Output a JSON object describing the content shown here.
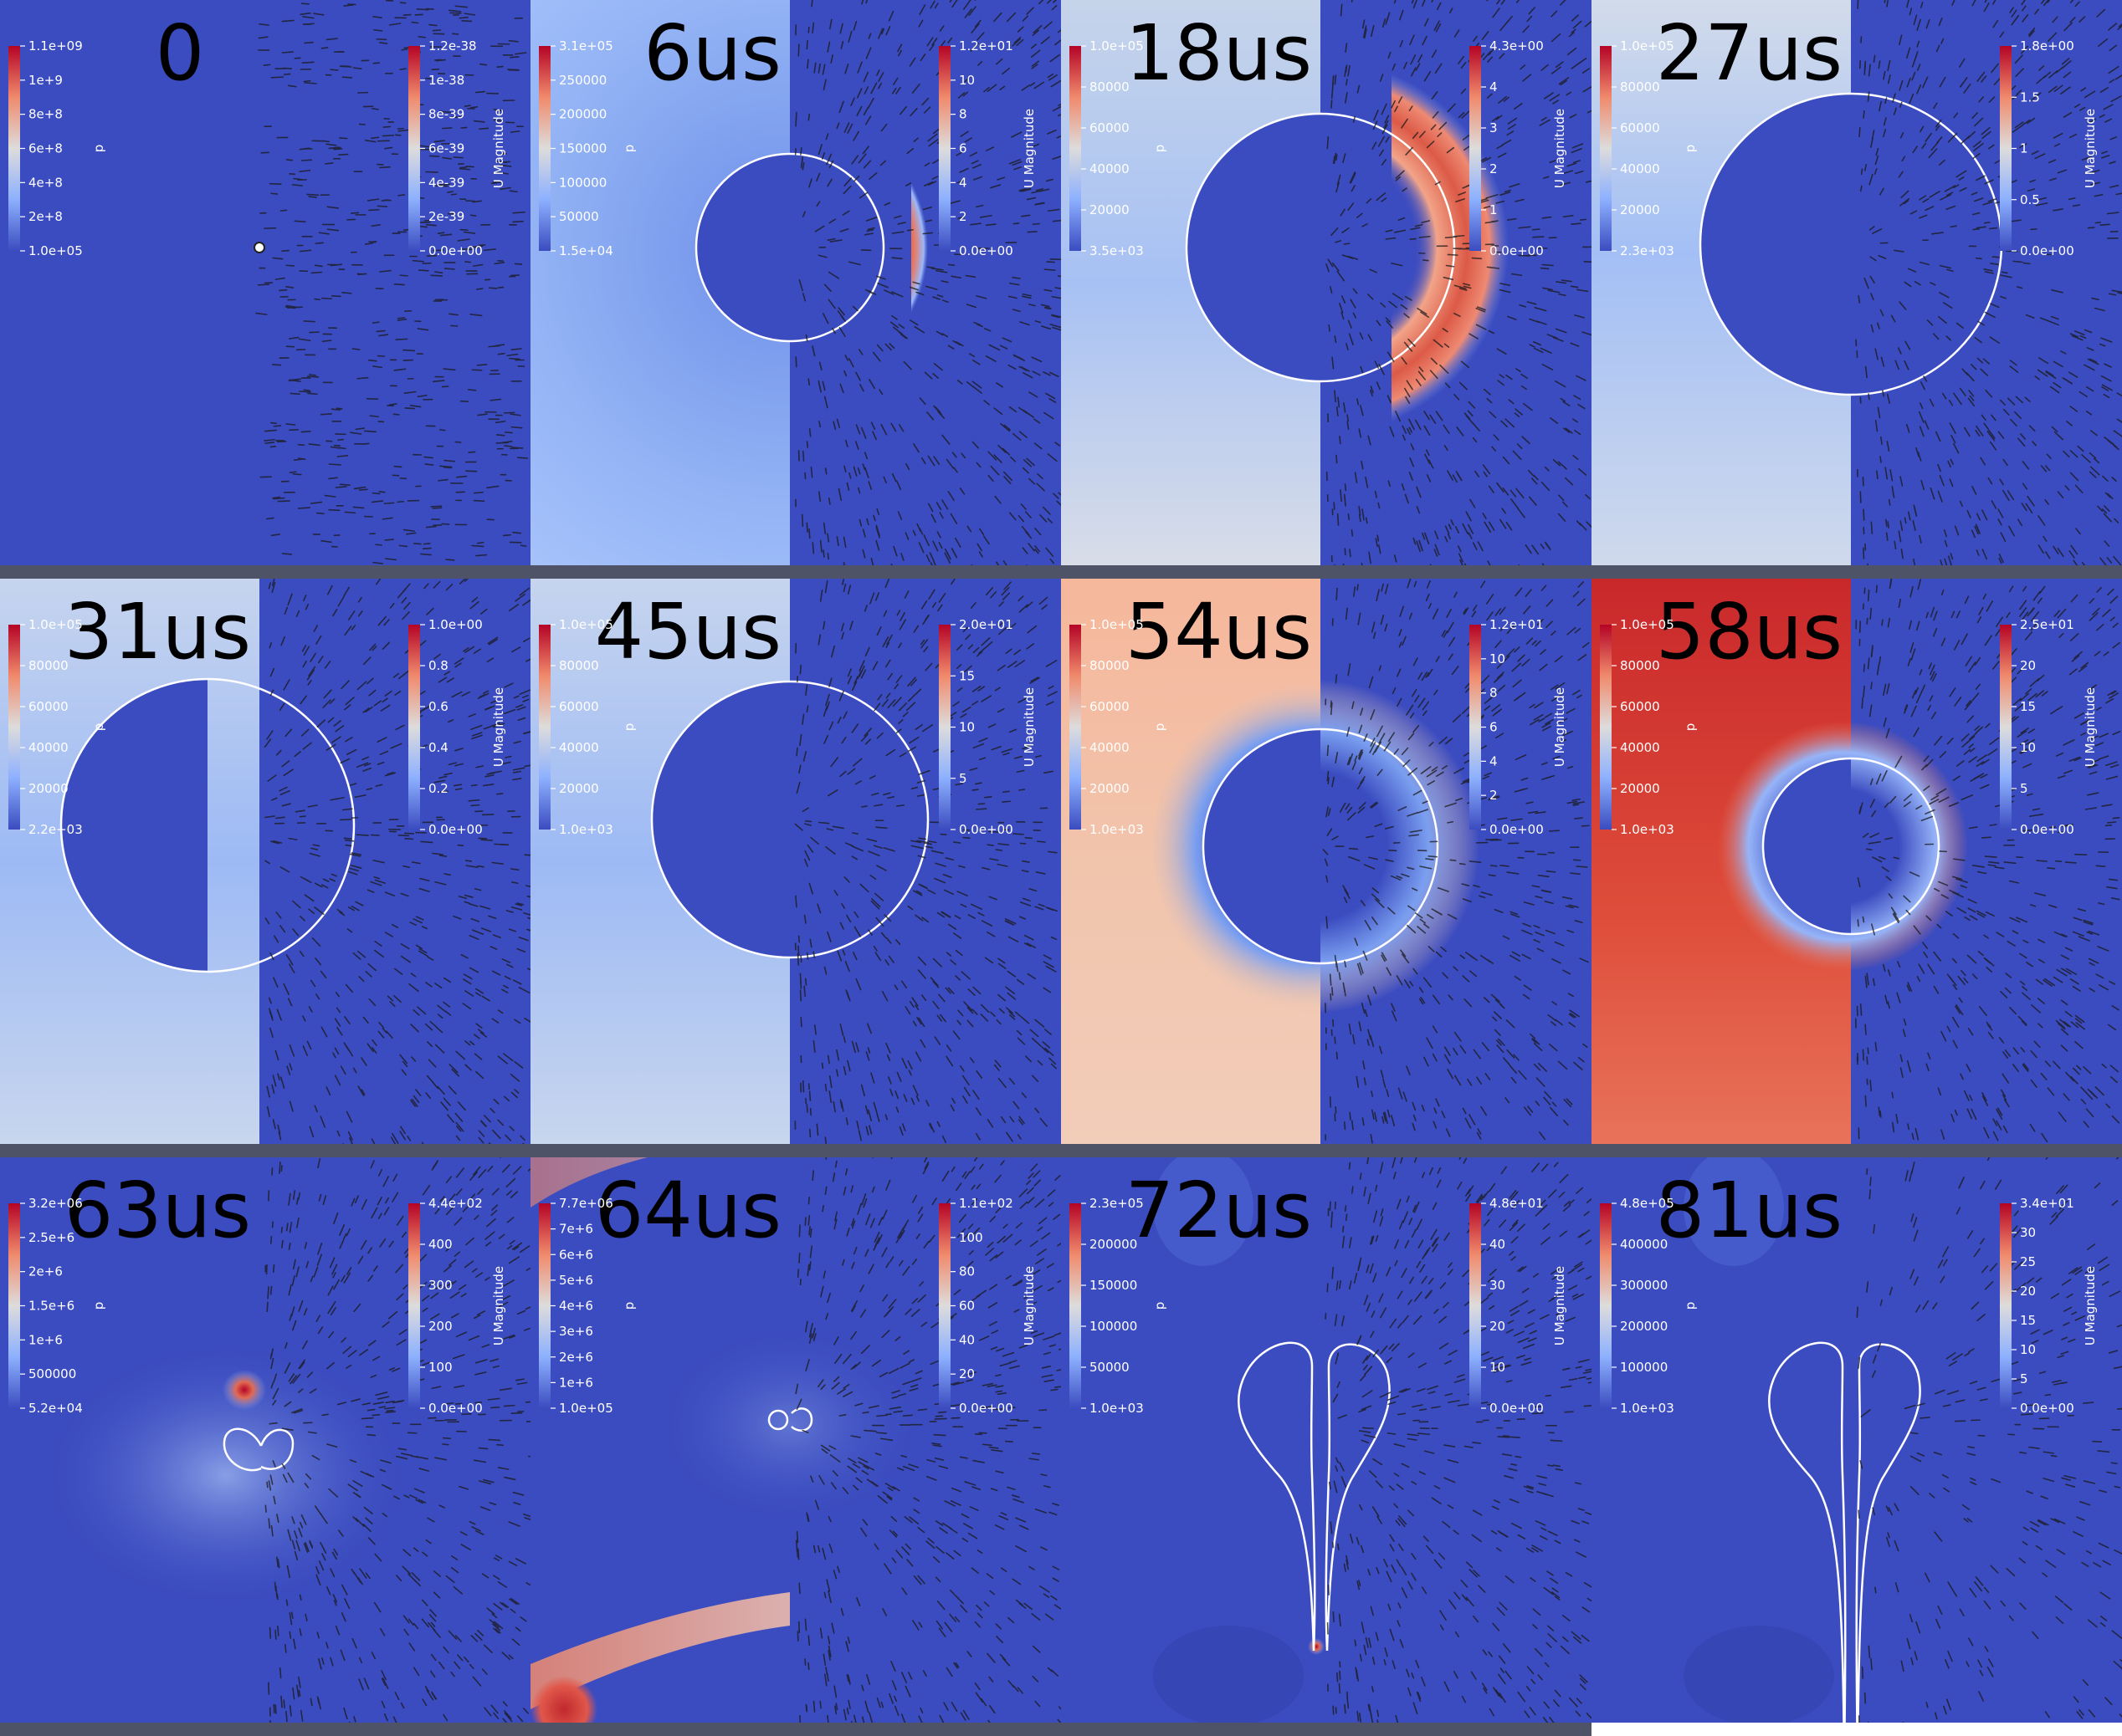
{
  "panels": [
    {
      "time": "0",
      "left": {
        "title": "p",
        "labels": [
          "1.1e+09",
          "1e+9",
          "8e+8",
          "6e+8",
          "4e+8",
          "2e+8",
          "1.0e+05"
        ]
      },
      "right": {
        "title": "U Magnitude",
        "labels": [
          "1.2e-38",
          "1e-38",
          "8e-39",
          "6e-39",
          "4e-39",
          "2e-39",
          "0.0e+00"
        ]
      }
    },
    {
      "time": "6us",
      "left": {
        "title": "p",
        "labels": [
          "3.1e+05",
          "250000",
          "200000",
          "150000",
          "100000",
          "50000",
          "1.5e+04"
        ]
      },
      "right": {
        "title": "U Magnitude",
        "labels": [
          "1.2e+01",
          "10",
          "8",
          "6",
          "4",
          "2",
          "0.0e+00"
        ]
      }
    },
    {
      "time": "18us",
      "left": {
        "title": "p",
        "labels": [
          "1.0e+05",
          "80000",
          "60000",
          "40000",
          "20000",
          "3.5e+03"
        ]
      },
      "right": {
        "title": "U Magnitude",
        "labels": [
          "4.3e+00",
          "4",
          "3",
          "2",
          "1",
          "0.0e+00"
        ]
      }
    },
    {
      "time": "27us",
      "left": {
        "title": "p",
        "labels": [
          "1.0e+05",
          "80000",
          "60000",
          "40000",
          "20000",
          "2.3e+03"
        ]
      },
      "right": {
        "title": "U Magnitude",
        "labels": [
          "1.8e+00",
          "1.5",
          "1",
          "0.5",
          "0.0e+00"
        ]
      }
    },
    {
      "time": "31us",
      "left": {
        "title": "p",
        "labels": [
          "1.0e+05",
          "80000",
          "60000",
          "40000",
          "20000",
          "2.2e+03"
        ]
      },
      "right": {
        "title": "U Magnitude",
        "labels": [
          "1.0e+00",
          "0.8",
          "0.6",
          "0.4",
          "0.2",
          "0.0e+00"
        ]
      }
    },
    {
      "time": "45us",
      "left": {
        "title": "p",
        "labels": [
          "1.0e+05",
          "80000",
          "60000",
          "40000",
          "20000",
          "1.0e+03"
        ]
      },
      "right": {
        "title": "U Magnitude",
        "labels": [
          "2.0e+01",
          "15",
          "10",
          "5",
          "0.0e+00"
        ]
      }
    },
    {
      "time": "54us",
      "left": {
        "title": "p",
        "labels": [
          "1.0e+05",
          "80000",
          "60000",
          "40000",
          "20000",
          "1.0e+03"
        ]
      },
      "right": {
        "title": "U Magnitude",
        "labels": [
          "1.2e+01",
          "10",
          "8",
          "6",
          "4",
          "2",
          "0.0e+00"
        ]
      }
    },
    {
      "time": "58us",
      "left": {
        "title": "p",
        "labels": [
          "1.0e+05",
          "80000",
          "60000",
          "40000",
          "20000",
          "1.0e+03"
        ]
      },
      "right": {
        "title": "U Magnitude",
        "labels": [
          "2.5e+01",
          "20",
          "15",
          "10",
          "5",
          "0.0e+00"
        ]
      }
    },
    {
      "time": "63us",
      "left": {
        "title": "p",
        "labels": [
          "3.2e+06",
          "2.5e+6",
          "2e+6",
          "1.5e+6",
          "1e+6",
          "500000",
          "5.2e+04"
        ]
      },
      "right": {
        "title": "U Magnitude",
        "labels": [
          "4.4e+02",
          "400",
          "300",
          "200",
          "100",
          "0.0e+00"
        ]
      }
    },
    {
      "time": "64us",
      "left": {
        "title": "p",
        "labels": [
          "7.7e+06",
          "7e+6",
          "6e+6",
          "5e+6",
          "4e+6",
          "3e+6",
          "2e+6",
          "1e+6",
          "1.0e+05"
        ]
      },
      "right": {
        "title": "U Magnitude",
        "labels": [
          "1.1e+02",
          "100",
          "80",
          "60",
          "40",
          "20",
          "0.0e+00"
        ]
      }
    },
    {
      "time": "72us",
      "left": {
        "title": "p",
        "labels": [
          "2.3e+05",
          "200000",
          "150000",
          "100000",
          "50000",
          "1.0e+03"
        ]
      },
      "right": {
        "title": "U Magnitude",
        "labels": [
          "4.8e+01",
          "40",
          "30",
          "20",
          "10",
          "0.0e+00"
        ]
      }
    },
    {
      "time": "81us",
      "left": {
        "title": "p",
        "labels": [
          "4.8e+05",
          "400000",
          "300000",
          "200000",
          "100000",
          "1.0e+03"
        ]
      },
      "right": {
        "title": "U Magnitude",
        "labels": [
          "3.4e+01",
          "30",
          "25",
          "20",
          "15",
          "10",
          "5",
          "0.0e+00"
        ]
      }
    }
  ],
  "colors": {
    "blue": "#3b4cc0",
    "light_blue": "#7da2f0",
    "pale": "#dddddd",
    "red": "#c63a32",
    "salmon": "#f3b59a",
    "separator": "#4f5368",
    "white": "#ffffff",
    "arrow": "#1a1a1a"
  }
}
